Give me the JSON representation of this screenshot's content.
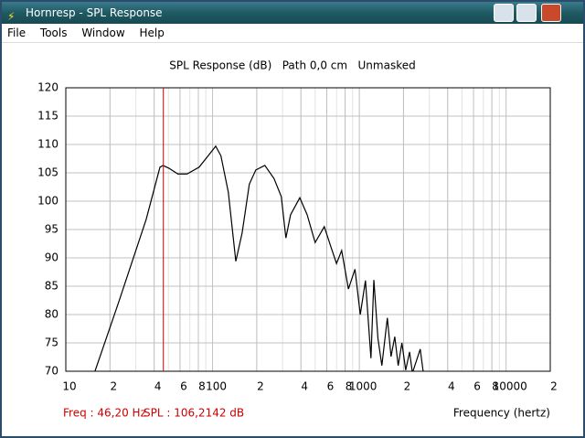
{
  "window": {
    "title": "Hornresp - SPL Response"
  },
  "menu": [
    "File",
    "Tools",
    "Window",
    "Help"
  ],
  "chart_data": {
    "type": "line",
    "title": "SPL Response (dB)   Path 0,0 cm   Unmasked",
    "x_label": "Frequency (hertz)",
    "log_x": true,
    "grid": true,
    "minor_grid": true,
    "xlim": [
      10,
      20000
    ],
    "xticks": [
      10,
      {
        "value": 20,
        "label": "2"
      },
      {
        "value": 40,
        "label": "4"
      },
      {
        "value": 60,
        "label": "6"
      },
      {
        "value": 80,
        "label": "8"
      },
      100,
      {
        "value": 200,
        "label": "2"
      },
      {
        "value": 400,
        "label": "4"
      },
      {
        "value": 600,
        "label": "6"
      },
      {
        "value": 800,
        "label": "8"
      },
      1000,
      {
        "value": 2000,
        "label": "2"
      },
      {
        "value": 4000,
        "label": "4"
      },
      {
        "value": 6000,
        "label": "6"
      },
      {
        "value": 8000,
        "label": "8"
      },
      10000,
      {
        "value": 20000,
        "label": "2"
      }
    ],
    "ylim": [
      70,
      120
    ],
    "yticks": [
      70,
      75,
      80,
      85,
      90,
      95,
      100,
      105,
      110,
      115,
      120
    ],
    "series": [
      {
        "color": "#000000",
        "x": [
          15.8,
          23,
          35.3,
          43.8,
          46,
          50.5,
          58,
          67,
          81,
          96,
          105,
          114,
          128,
          144,
          159,
          178,
          197,
          227,
          262,
          294,
          316,
          340,
          393,
          441,
          500,
          577,
          639,
          699,
          758,
          843,
          934,
          1015,
          1101,
          1200,
          1256,
          1339,
          1424,
          1552,
          1645,
          1744,
          1840,
          1950,
          2070,
          2200,
          2300,
          2600,
          2740
        ],
        "values": [
          70,
          82.3,
          96.8,
          106,
          106.3,
          105.8,
          104.8,
          104.8,
          106,
          108.4,
          109.7,
          108,
          101.6,
          89.4,
          94.4,
          103,
          105.5,
          106.3,
          104,
          100.8,
          93.5,
          97.6,
          100.6,
          97.6,
          92.7,
          95.5,
          92,
          89,
          91.3,
          84.5,
          88,
          80,
          86,
          72.3,
          86.1,
          75.8,
          71,
          79.4,
          72.6,
          76.1,
          71,
          75,
          70.2,
          73.4,
          69.7,
          73.9,
          69.4
        ]
      }
    ],
    "cursor": {
      "x": 46.2,
      "color": "#cc0000",
      "x_label": "Freq : 46,20 Hz",
      "y_label": "SPL : 106,2142 dB"
    }
  }
}
